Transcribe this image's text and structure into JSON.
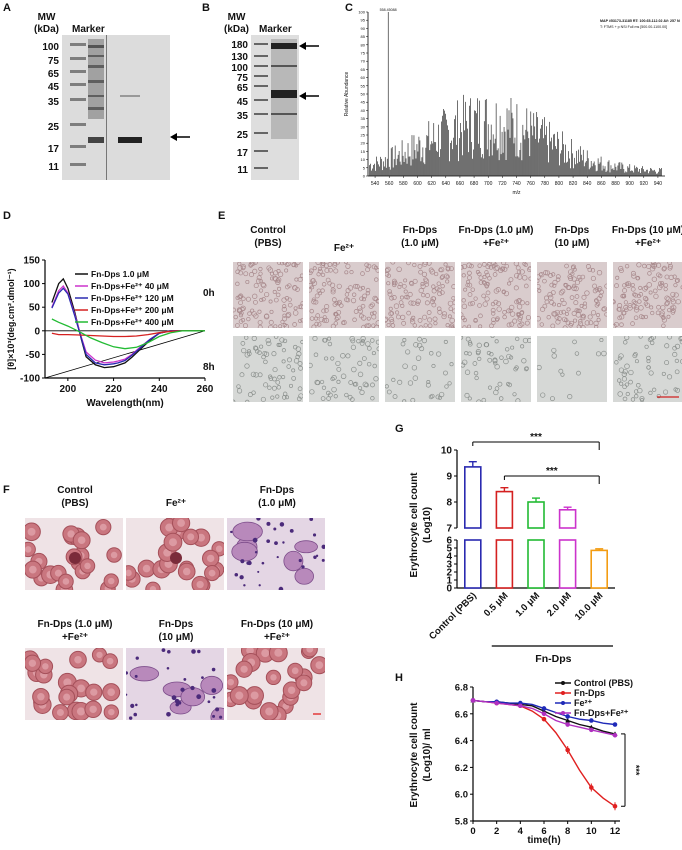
{
  "panels": {
    "A": {
      "letter": "A",
      "mw_title": "MW",
      "mw_unit": "(kDa)",
      "marker_label": "Marker",
      "mw_ticks": [
        "100",
        "75",
        "65",
        "45",
        "35",
        "25",
        "17",
        "11"
      ]
    },
    "B": {
      "letter": "B",
      "mw_title": "MW",
      "mw_unit": "(kDa)",
      "marker_label": "Marker",
      "mw_ticks": [
        "180",
        "130",
        "100",
        "75",
        "65",
        "45",
        "35",
        "25",
        "17",
        "11"
      ]
    },
    "C": {
      "letter": "C",
      "header_line1": "MAP #53173-31185 RT: 100.65-112.02 AV: 257 NL: 3.56E6",
      "header_line2": "T: FTMS + p NSI Full ms [500.00-1100.00]",
      "ylabel": "Relative Abundance",
      "xlabel": "m/z",
      "x_ticks": [
        "540",
        "560",
        "580",
        "600",
        "620",
        "640",
        "660",
        "680",
        "700",
        "720",
        "740",
        "760",
        "780",
        "800",
        "820",
        "840",
        "860",
        "880",
        "900",
        "920",
        "940"
      ],
      "y_ticks": [
        "0",
        "5",
        "10",
        "15",
        "20",
        "25",
        "30",
        "35",
        "40",
        "45",
        "50",
        "55",
        "60",
        "65",
        "70",
        "75",
        "80",
        "85",
        "90",
        "95",
        "100"
      ],
      "base_peak_label": "558.45088"
    },
    "D": {
      "letter": "D",
      "xlabel": "Wavelength(nm)",
      "ylabel": "[θ]×10³(deg.cm².dmol⁻¹)",
      "x_ticks": [
        "200",
        "220",
        "240",
        "260"
      ],
      "y_ticks": [
        "150",
        "100",
        "50",
        "0",
        "-50",
        "-100"
      ],
      "legend": [
        {
          "label": "Fn-Dps 1.0 μM",
          "color": "#111111"
        },
        {
          "label": "Fn-Dps+Fe²⁺ 40 μM",
          "color": "#cc33cc"
        },
        {
          "label": "Fn-Dps+Fe²⁺ 120 μM",
          "color": "#2a2ab0"
        },
        {
          "label": "Fn-Dps+Fe²⁺ 200 μM",
          "color": "#d42020"
        },
        {
          "label": "Fn-Dps+Fe²⁺ 400 μM",
          "color": "#22bb33"
        }
      ]
    },
    "E": {
      "letter": "E",
      "columns": [
        {
          "l1": "Control",
          "l2": "(PBS)"
        },
        {
          "l1": "Fe²⁺",
          "l2": ""
        },
        {
          "l1": "Fn-Dps",
          "l2": "(1.0 μM)"
        },
        {
          "l1": "Fn-Dps (1.0 μM)",
          "l2": "+Fe²⁺"
        },
        {
          "l1": "Fn-Dps",
          "l2": "(10 μM)"
        },
        {
          "l1": "Fn-Dps (10 μM)",
          "l2": "+Fe²⁺"
        }
      ],
      "rows": [
        "0h",
        "8h"
      ]
    },
    "F": {
      "letter": "F",
      "top": [
        {
          "l1": "Control",
          "l2": "(PBS)"
        },
        {
          "l1": "Fe²⁺",
          "l2": ""
        },
        {
          "l1": "Fn-Dps",
          "l2": "(1.0 μM)"
        }
      ],
      "bottom": [
        {
          "l1": "Fn-Dps (1.0 μM)",
          "l2": "+Fe²⁺"
        },
        {
          "l1": "Fn-Dps",
          "l2": "(10 μM)"
        },
        {
          "l1": "Fn-Dps (10 μM)",
          "l2": "+Fe²⁺"
        }
      ]
    },
    "G": {
      "letter": "G",
      "ylabel1": "Erythrocyte cell count",
      "ylabel2": "(Log10)",
      "group_label": "Fn-Dps",
      "sig1": "***",
      "sig2": "***"
    },
    "H": {
      "letter": "H",
      "ylabel1": "Erythrocyte cell count",
      "ylabel2": "(Log10)/ ml",
      "xlabel": "time(h)",
      "sig": "***"
    }
  },
  "chart_data": [
    {
      "type": "line",
      "id": "D",
      "xlabel": "Wavelength(nm)",
      "ylabel": "[θ]×10³(deg.cm².dmol⁻¹)",
      "xlim": [
        190,
        260
      ],
      "ylim": [
        -100,
        150
      ],
      "series": [
        {
          "name": "Fn-Dps 1.0 μM",
          "color": "#111111",
          "x": [
            193,
            196,
            198,
            200,
            203,
            206,
            208,
            212,
            216,
            220,
            222,
            225,
            228,
            232,
            236,
            240,
            245,
            250,
            260
          ],
          "y": [
            60,
            100,
            110,
            90,
            40,
            -20,
            -55,
            -72,
            -78,
            -76,
            -73,
            -68,
            -56,
            -38,
            -20,
            -5,
            0,
            0,
            0
          ]
        },
        {
          "name": "Fn-Dps+Fe²⁺ 40 μM",
          "color": "#cc33cc",
          "x": [
            193,
            196,
            198,
            200,
            203,
            206,
            208,
            212,
            216,
            220,
            222,
            225,
            228,
            232,
            236,
            240,
            245,
            250,
            260
          ],
          "y": [
            50,
            85,
            95,
            80,
            35,
            -15,
            -45,
            -62,
            -68,
            -66,
            -64,
            -60,
            -50,
            -33,
            -18,
            -5,
            0,
            0,
            0
          ]
        },
        {
          "name": "Fn-Dps+Fe²⁺ 120 μM",
          "color": "#2a2ab0",
          "x": [
            193,
            196,
            198,
            200,
            203,
            206,
            208,
            212,
            216,
            220,
            222,
            225,
            228,
            232,
            236,
            240,
            245,
            250,
            260
          ],
          "y": [
            48,
            80,
            90,
            78,
            32,
            -18,
            -50,
            -68,
            -72,
            -70,
            -68,
            -63,
            -52,
            -35,
            -18,
            -5,
            0,
            0,
            0
          ]
        },
        {
          "name": "Fn-Dps+Fe²⁺ 200 μM",
          "color": "#d42020",
          "x": [
            193,
            196,
            200,
            205,
            210,
            215,
            220,
            225,
            230,
            235,
            240,
            245,
            250,
            260
          ],
          "y": [
            -5,
            -8,
            -8,
            -9,
            -10,
            -11,
            -12,
            -12,
            -11,
            -8,
            -4,
            -1,
            0,
            0
          ]
        },
        {
          "name": "Fn-Dps+Fe²⁺ 400 μM",
          "color": "#22bb33",
          "x": [
            193,
            196,
            200,
            205,
            210,
            215,
            220,
            225,
            230,
            235,
            240,
            245,
            250,
            260
          ],
          "y": [
            25,
            18,
            10,
            -2,
            -15,
            -25,
            -34,
            -38,
            -35,
            -25,
            -12,
            -4,
            0,
            0
          ]
        }
      ]
    },
    {
      "type": "bar",
      "id": "G",
      "categories": [
        "Control (PBS)",
        "0.5 μM",
        "1.0 μM",
        "2.0 μM",
        "10.0 μM"
      ],
      "values": [
        9.35,
        8.4,
        8.0,
        7.7,
        4.7
      ],
      "errors": [
        0.2,
        0.15,
        0.15,
        0.1,
        0.2
      ],
      "colors": [
        "#2a2ab0",
        "#d42020",
        "#22bb33",
        "#cc33cc",
        "#f39c12"
      ],
      "y_ticks": [
        "0",
        "1",
        "2",
        "3",
        "4",
        "5",
        "6",
        "7",
        "8",
        "9",
        "10"
      ],
      "ylim": [
        0,
        10
      ],
      "axis_break": [
        6,
        7
      ]
    },
    {
      "type": "line",
      "id": "H",
      "xlabel": "time(h)",
      "x": [
        0,
        1,
        2,
        3,
        4,
        5,
        6,
        7,
        8,
        9,
        10,
        11,
        12
      ],
      "x_ticks": [
        "0",
        "2",
        "4",
        "6",
        "8",
        "10",
        "12"
      ],
      "y_ticks": [
        "5.8",
        "6.0",
        "6.2",
        "6.4",
        "6.6",
        "6.8"
      ],
      "ylim": [
        5.8,
        6.8
      ],
      "series": [
        {
          "name": "Control (PBS)",
          "color": "#111111",
          "values": [
            6.7,
            6.69,
            6.69,
            6.68,
            6.67,
            6.66,
            6.62,
            6.58,
            6.55,
            6.52,
            6.5,
            6.47,
            6.45
          ]
        },
        {
          "name": "Fn-Dps",
          "color": "#e02020",
          "values": [
            6.7,
            6.69,
            6.68,
            6.67,
            6.66,
            6.62,
            6.56,
            6.46,
            6.33,
            6.18,
            6.05,
            5.97,
            5.91
          ]
        },
        {
          "name": "Fe²⁺",
          "color": "#1f2ab8",
          "values": [
            6.7,
            6.69,
            6.69,
            6.68,
            6.68,
            6.67,
            6.64,
            6.61,
            6.58,
            6.56,
            6.55,
            6.53,
            6.52
          ]
        },
        {
          "name": "Fn-Dps+Fe²⁺",
          "color": "#b030c0",
          "values": [
            6.7,
            6.69,
            6.68,
            6.67,
            6.66,
            6.64,
            6.6,
            6.55,
            6.52,
            6.5,
            6.48,
            6.46,
            6.44
          ]
        }
      ]
    }
  ]
}
